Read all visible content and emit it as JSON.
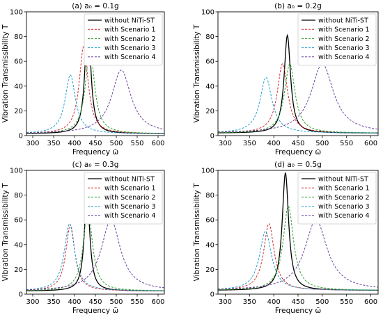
{
  "chart_data": [
    {
      "type": "line",
      "title": "(a) a₀ = 0.1g",
      "xlabel": "Frequency ω̄",
      "ylabel": "Vibration Transmissibility  T",
      "xlim": [
        285,
        615
      ],
      "ylim": [
        0,
        100
      ],
      "xticks": [
        "300",
        "350",
        "400",
        "450",
        "500",
        "550",
        "600"
      ],
      "yticks": [
        "0",
        "20",
        "40",
        "60",
        "80",
        "100"
      ],
      "legend_position": "top-right",
      "series": [
        {
          "name": "without NiTi-ST",
          "color": "#000000",
          "dash": "solid",
          "peak_x": 432,
          "peak_y": 97,
          "baseline": 1.5
        },
        {
          "name": "with Scenario 1",
          "color": "#d62728",
          "dash": "dashed",
          "peak_x": 422,
          "peak_y": 72,
          "baseline": 1.5
        },
        {
          "name": "with Scenario 2",
          "color": "#2ca02c",
          "dash": "dashed",
          "peak_x": 437,
          "peak_y": 70,
          "baseline": 1.5
        },
        {
          "name": "with Scenario 3",
          "color": "#1f9fd4",
          "dash": "dashed",
          "peak_x": 390,
          "peak_y": 49,
          "baseline": 1.5
        },
        {
          "name": "with Scenario 4",
          "color": "#6a3d9a",
          "dash": "dashed",
          "peak_x": 512,
          "peak_y": 53,
          "baseline": 1.5
        }
      ]
    },
    {
      "type": "line",
      "title": "(b) a₀ = 0.2g",
      "xlabel": "Frequency ω̄",
      "ylabel": "Vibration Transmissibility  T",
      "xlim": [
        285,
        615
      ],
      "ylim": [
        0,
        100
      ],
      "xticks": [
        "300",
        "350",
        "400",
        "450",
        "500",
        "550",
        "600"
      ],
      "yticks": [
        "0",
        "20",
        "40",
        "60",
        "80",
        "100"
      ],
      "legend_position": "top-right",
      "series": [
        {
          "name": "without NiTi-ST",
          "color": "#000000",
          "dash": "solid",
          "peak_x": 428,
          "peak_y": 81,
          "baseline": 2
        },
        {
          "name": "with Scenario 1",
          "color": "#d62728",
          "dash": "dashed",
          "peak_x": 418,
          "peak_y": 58,
          "baseline": 2
        },
        {
          "name": "with Scenario 2",
          "color": "#2ca02c",
          "dash": "dashed",
          "peak_x": 433,
          "peak_y": 58,
          "baseline": 2
        },
        {
          "name": "with Scenario 3",
          "color": "#1f9fd4",
          "dash": "dashed",
          "peak_x": 384,
          "peak_y": 47,
          "baseline": 2
        },
        {
          "name": "with Scenario 4",
          "color": "#6a3d9a",
          "dash": "dashed",
          "peak_x": 500,
          "peak_y": 58,
          "baseline": 2
        }
      ]
    },
    {
      "type": "line",
      "title": "(c) a₀ = 0.3g",
      "xlabel": "Frequency ω̄",
      "ylabel": "Vibration Transmissibility  T",
      "xlim": [
        285,
        615
      ],
      "ylim": [
        0,
        100
      ],
      "xticks": [
        "300",
        "350",
        "400",
        "450",
        "500",
        "550",
        "600"
      ],
      "yticks": [
        "0",
        "20",
        "40",
        "60",
        "80",
        "100"
      ],
      "legend_position": "top-right",
      "series": [
        {
          "name": "without NiTi-ST",
          "color": "#000000",
          "dash": "solid",
          "peak_x": 430,
          "peak_y": 81,
          "baseline": 2.5
        },
        {
          "name": "with Scenario 1",
          "color": "#d62728",
          "dash": "dashed",
          "peak_x": 390,
          "peak_y": 56,
          "baseline": 2.5
        },
        {
          "name": "with Scenario 2",
          "color": "#2ca02c",
          "dash": "dashed",
          "peak_x": 432,
          "peak_y": 69,
          "baseline": 2.5
        },
        {
          "name": "with Scenario 3",
          "color": "#1f9fd4",
          "dash": "dashed",
          "peak_x": 388,
          "peak_y": 57,
          "baseline": 2.5
        },
        {
          "name": "with Scenario 4",
          "color": "#6a3d9a",
          "dash": "dashed",
          "peak_x": 487,
          "peak_y": 60,
          "baseline": 2.5
        }
      ]
    },
    {
      "type": "line",
      "title": "(d) a₀ = 0.5g",
      "xlabel": "Frequency ω̄",
      "ylabel": "Vibration Transmissibility  T",
      "xlim": [
        285,
        615
      ],
      "ylim": [
        0,
        100
      ],
      "xticks": [
        "300",
        "350",
        "400",
        "450",
        "500",
        "550",
        "600"
      ],
      "yticks": [
        "0",
        "20",
        "40",
        "60",
        "80",
        "100"
      ],
      "legend_position": "top-right",
      "series": [
        {
          "name": "without NiTi-ST",
          "color": "#000000",
          "dash": "solid",
          "peak_x": 424,
          "peak_y": 98,
          "baseline": 3
        },
        {
          "name": "with Scenario 1",
          "color": "#d62728",
          "dash": "dashed",
          "peak_x": 390,
          "peak_y": 57,
          "baseline": 3
        },
        {
          "name": "with Scenario 2",
          "color": "#2ca02c",
          "dash": "dashed",
          "peak_x": 430,
          "peak_y": 71,
          "baseline": 3
        },
        {
          "name": "with Scenario 3",
          "color": "#1f9fd4",
          "dash": "dashed",
          "peak_x": 383,
          "peak_y": 51,
          "baseline": 3
        },
        {
          "name": "with Scenario 4",
          "color": "#6a3d9a",
          "dash": "dashed",
          "peak_x": 487,
          "peak_y": 60,
          "baseline": 3
        }
      ]
    }
  ]
}
